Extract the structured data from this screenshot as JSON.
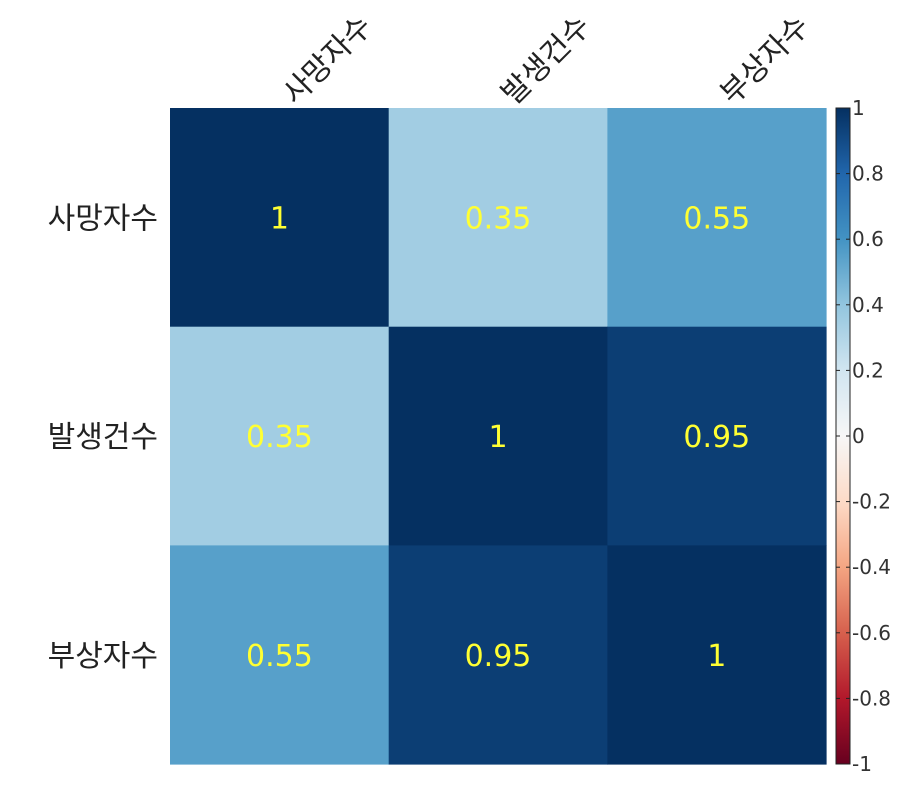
{
  "chart_data": {
    "type": "heatmap",
    "rows": [
      "사망자수",
      "발생건수",
      "부상자수"
    ],
    "columns": [
      "사망자수",
      "발생건수",
      "부상자수"
    ],
    "values": [
      [
        1,
        0.35,
        0.55
      ],
      [
        0.35,
        1,
        0.95
      ],
      [
        0.55,
        0.95,
        1
      ]
    ],
    "cell_labels": [
      [
        "1",
        "0.35",
        "0.55"
      ],
      [
        "0.35",
        "1",
        "0.95"
      ],
      [
        "0.55",
        "0.95",
        "1"
      ]
    ],
    "value_range": [
      -1,
      1
    ],
    "colorbar": {
      "ticks": [
        1,
        0.8,
        0.6,
        0.4,
        0.2,
        0,
        -0.2,
        -0.4,
        -0.6,
        -0.8,
        -1
      ],
      "tick_labels": [
        "1",
        "0.8",
        "0.6",
        "0.4",
        "0.2",
        "0",
        "-0.2",
        "-0.4",
        "-0.6",
        "-0.8",
        "-1"
      ],
      "placement": "right"
    },
    "colormap": "RdBu",
    "cell_label_color": "#FFFF33",
    "grid": false
  },
  "colors": {
    "cell_label": "#FFFF33",
    "text": "#222222"
  }
}
